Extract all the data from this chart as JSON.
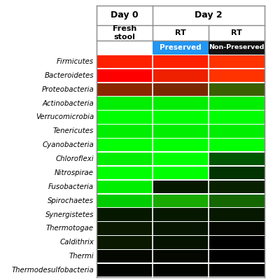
{
  "genera": [
    "Firmicutes",
    "Bacteroidetes",
    "Proteobacteria",
    "Actinobacteria",
    "Verrucomicrobia",
    "Tenericutes",
    "Cyanobacteria",
    "Chloroflexi",
    "Nitrospirae",
    "Fusobacteria",
    "Spirochaetes",
    "Synergistetes",
    "Thermotogae",
    "Caldithrix",
    "Thermi",
    "Thermodesulfobacteria"
  ],
  "preserved_bg": "#2196F3",
  "nonpreserved_bg": "#111111",
  "preserved_text_color": "#FFFFFF",
  "nonpreserved_text_color": "#FFFFFF",
  "cell_colors": [
    [
      "#FF2000",
      "#FF2000",
      "#FF3300"
    ],
    [
      "#FF0000",
      "#EE2000",
      "#FF3300"
    ],
    [
      "#8B2800",
      "#7B2800",
      "#3A6000"
    ],
    [
      "#00EE00",
      "#00EE00",
      "#00EE00"
    ],
    [
      "#00FF00",
      "#00FF00",
      "#00FF00"
    ],
    [
      "#00EE00",
      "#00EE00",
      "#00EE00"
    ],
    [
      "#00FF00",
      "#00FF00",
      "#00FF00"
    ],
    [
      "#00EE00",
      "#00FF00",
      "#005500"
    ],
    [
      "#00FF00",
      "#00FF00",
      "#003300"
    ],
    [
      "#00EE00",
      "#061800",
      "#082000"
    ],
    [
      "#00CC00",
      "#18AA00",
      "#136600"
    ],
    [
      "#061800",
      "#061800",
      "#061800"
    ],
    [
      "#0A1800",
      "#061500",
      "#040800"
    ],
    [
      "#0A1800",
      "#061200",
      "#000000"
    ],
    [
      "#040800",
      "#040800",
      "#000000"
    ],
    [
      "#020400",
      "#020400",
      "#010200"
    ]
  ],
  "fig_bg": "#FFFFFF",
  "label_fontsize": 7.3,
  "header_fontsize": 8.5
}
